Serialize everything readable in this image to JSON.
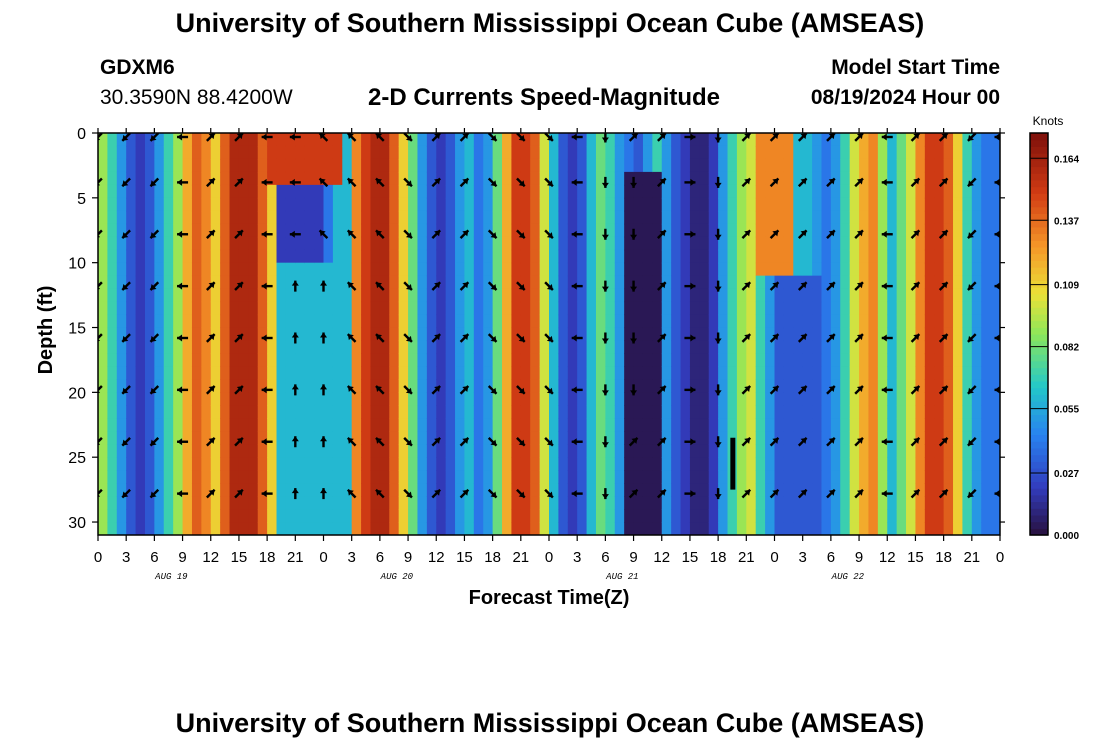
{
  "header": {
    "title": "University of Southern Mississippi Ocean Cube (AMSEAS)",
    "station": "GDXM6",
    "coords": "30.3590N  88.4200W",
    "variable": "2-D Currents Speed-Magnitude",
    "start_label": "Model Start Time",
    "start_value": "08/19/2024 Hour 00"
  },
  "footer": {
    "title": "University of Southern Mississippi Ocean Cube (AMSEAS)"
  },
  "chart_data": {
    "type": "heatmap",
    "title": "2-D Currents Speed-Magnitude",
    "xlabel": "Forecast Time(Z)",
    "ylabel": "Depth (ft)",
    "x_ticks": [
      "0",
      "3",
      "6",
      "9",
      "12",
      "15",
      "18",
      "21",
      "0",
      "3",
      "6",
      "9",
      "12",
      "15",
      "18",
      "21",
      "0",
      "3",
      "6",
      "9",
      "12",
      "15",
      "18",
      "21",
      "0",
      "3",
      "6",
      "9",
      "12",
      "15",
      "18",
      "21",
      "0"
    ],
    "date_labels": [
      {
        "label": "AUG 19",
        "hour": 6
      },
      {
        "label": "AUG 20",
        "hour": 30
      },
      {
        "label": "AUG 21",
        "hour": 54
      },
      {
        "label": "AUG 22",
        "hour": 78
      }
    ],
    "x_range_hours": [
      0,
      96
    ],
    "y_range_ft": [
      0,
      31
    ],
    "y_ticks": [
      0,
      5,
      10,
      15,
      20,
      25,
      30
    ],
    "colorbar": {
      "unit": "Knots",
      "ticks": [
        0.0,
        0.027,
        0.055,
        0.082,
        0.109,
        0.137,
        0.164
      ],
      "tick_labels": [
        "0.000",
        "0.027",
        "0.055",
        "0.082",
        "0.109",
        "0.137",
        "0.164"
      ],
      "range": [
        0,
        0.175
      ]
    },
    "speed_columns_knots": [
      0.09,
      0.07,
      0.05,
      0.03,
      0.02,
      0.03,
      0.05,
      0.07,
      0.09,
      0.12,
      0.14,
      0.13,
      0.11,
      0.14,
      0.16,
      0.16,
      0.16,
      0.14,
      0.11,
      0.09,
      0.07,
      0.05,
      0.05,
      0.05,
      0.04,
      0.06,
      0.06,
      0.13,
      0.15,
      0.16,
      0.16,
      0.14,
      0.11,
      0.08,
      0.05,
      0.03,
      0.02,
      0.03,
      0.05,
      0.06,
      0.04,
      0.05,
      0.08,
      0.12,
      0.15,
      0.15,
      0.14,
      0.1,
      0.06,
      0.03,
      0.02,
      0.03,
      0.06,
      0.08,
      0.07,
      0.05,
      0.04,
      0.03,
      0.05,
      0.07,
      0.05,
      0.03,
      0.02,
      0.01,
      0.01,
      0.02,
      0.05,
      0.07,
      0.09,
      0.1,
      0.07,
      0.05,
      0.03,
      0.04,
      0.06,
      0.06,
      0.05,
      0.04,
      0.05,
      0.07,
      0.1,
      0.12,
      0.13,
      0.09,
      0.06,
      0.08,
      0.1,
      0.13,
      0.15,
      0.15,
      0.14,
      0.11,
      0.07,
      0.05,
      0.04,
      0.04,
      0.05
    ],
    "anomalies": [
      {
        "hour_range": [
          18,
          26
        ],
        "depth_range": [
          0,
          4
        ],
        "speed": 0.15
      },
      {
        "hour_range": [
          19,
          24
        ],
        "depth_range": [
          4,
          10
        ],
        "speed": 0.02
      },
      {
        "hour_range": [
          19,
          26
        ],
        "depth_range": [
          10,
          31
        ],
        "speed": 0.06
      },
      {
        "hour_range": [
          56,
          60
        ],
        "depth_range": [
          3,
          31
        ],
        "speed": 0.004
      },
      {
        "hour_range": [
          70,
          74
        ],
        "depth_range": [
          0,
          11
        ],
        "speed": 0.13
      },
      {
        "hour_range": [
          73,
          77
        ],
        "depth_range": [
          11,
          31
        ],
        "speed": 0.03
      }
    ],
    "vector_hours": [
      0,
      3,
      6,
      9,
      12,
      15,
      18,
      21,
      24,
      27,
      30,
      33,
      36,
      39,
      42,
      45,
      48,
      51,
      54,
      57,
      60,
      63,
      66,
      69,
      72,
      75,
      78,
      81,
      84,
      87,
      90,
      93,
      96
    ],
    "vector_depths_ft": [
      0,
      3.5,
      7.5,
      11.5,
      15.5,
      19.5,
      23.5,
      27.5
    ],
    "vector_directions_deg": [
      225,
      225,
      225,
      270,
      45,
      45,
      270,
      270,
      315,
      315,
      315,
      135,
      45,
      45,
      135,
      135,
      135,
      270,
      180,
      45,
      45,
      90,
      180,
      45,
      45,
      45,
      45,
      45,
      270,
      45,
      45,
      225,
      270
    ],
    "vector_direction_overrides": [
      {
        "hour": 24,
        "depths_ft": [
          11.5,
          15.5,
          19.5,
          23.5,
          27.5
        ],
        "deg": 0
      },
      {
        "hour": 21,
        "depths_ft": [
          11.5,
          15.5,
          19.5,
          23.5,
          27.5
        ],
        "deg": 0
      },
      {
        "hour": 54,
        "depths_ft": [
          3.5,
          7.5,
          11.5,
          15.5,
          19.5,
          23.5,
          27.5
        ],
        "deg": 180
      },
      {
        "hour": 57,
        "depths_ft": [
          3.5,
          7.5,
          11.5,
          15.5,
          19.5
        ],
        "deg": 180
      }
    ]
  },
  "colors": {
    "frame": "#000000",
    "text": "#000000",
    "background": "#ffffff"
  }
}
